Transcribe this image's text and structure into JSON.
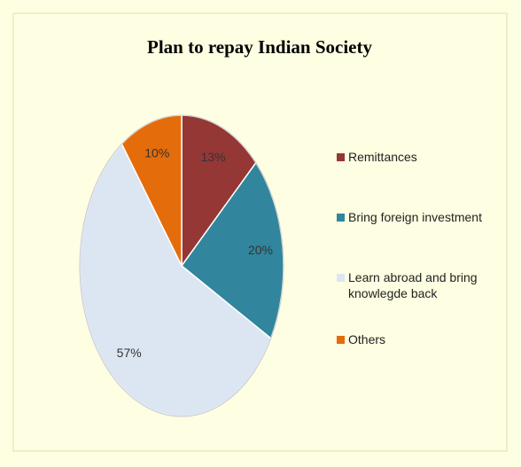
{
  "chart_data": {
    "type": "pie",
    "title": "Plan to repay Indian Society",
    "categories": [
      "Remittances",
      "Bring foreign investment",
      "Learn abroad and bring knowlegde back",
      "Others"
    ],
    "values": [
      13,
      20,
      57,
      10
    ],
    "value_labels": [
      "13%",
      "20%",
      "57%",
      "10%"
    ],
    "colors": [
      "#953735",
      "#31859c",
      "#dce6f2",
      "#e46c0a"
    ],
    "legend": "right"
  }
}
